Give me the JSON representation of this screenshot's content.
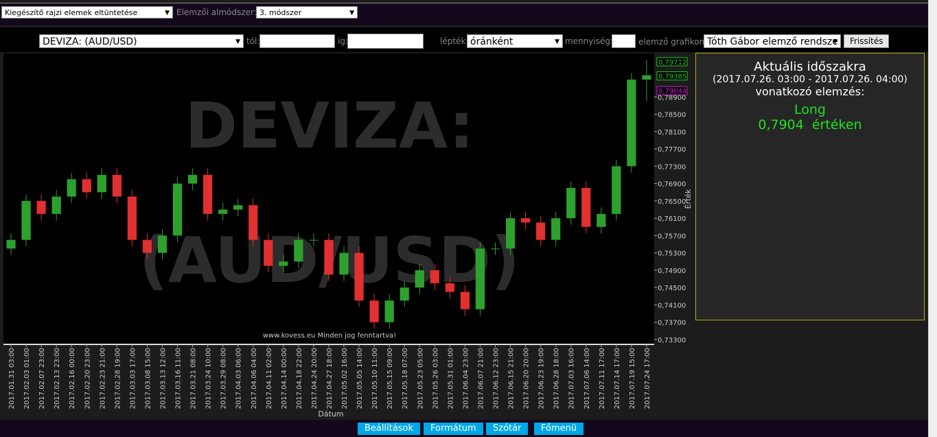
{
  "toolbar": {
    "hide_select": "Kiegészítő rajzi elemek eltüntetése",
    "submethod_label": "Elemzői almódszer:",
    "submethod_select": "3. módszer"
  },
  "controls": {
    "currency_select": "DEVIZA: (AUD/USD)",
    "from_label": "tól:",
    "to_label": "ig:",
    "scale_label": "lépték:",
    "scale_select": "óránként",
    "quantity_label": "mennyiség:",
    "analyst_label": "elemző grafikon:",
    "analyst_select": "Tóth Gábor elemző rendsze",
    "refresh": "Frissítés"
  },
  "chart_data": {
    "type": "candlestick",
    "title": "DEVIZA: (AUD/USD)",
    "copyright": "www.kovess.eu Minden jog fenntartva!",
    "x_label": "Dátum",
    "y_label": "Érték",
    "up_color": "#2ea02e",
    "down_color": "#e03030",
    "categories": [
      "2017.01.31 03:00",
      "2017.02.03 01:00",
      "2017.02.07 23:00",
      "2017.02.13 23:00",
      "2017.02.16 00:00",
      "2017.02.20 23:00",
      "2017.02.23 21:00",
      "2017.02.28 19:00",
      "2017.03.03 17:00",
      "2017.03.08 15:00",
      "2017.03.13 12:00",
      "2017.03.16 11:00",
      "2017.03.21 08:00",
      "2017.03.24 10:00",
      "2017.03.29 08:00",
      "2017.04.03 06:00",
      "2017.04.06 04:00",
      "2017.04.11 02:00",
      "2017.04.14 00:00",
      "2017.04.18 22:00",
      "2017.04.24 20:00",
      "2017.04.27 18:00",
      "2017.05.02 16:00",
      "2017.05.05 14:00",
      "2017.05.10 11:00",
      "2017.05.15 09:00",
      "2017.05.18 07:00",
      "2017.05.23 05:00",
      "2017.05.26 03:00",
      "2017.05.31 01:00",
      "2017.06.04 23:00",
      "2017.06.07 21:00",
      "2017.06.12 23:00",
      "2017.06.15 21:00",
      "2017.06.20 20:00",
      "2017.06.23 19:00",
      "2017.06.28 18:00",
      "2017.07.03 16:00",
      "2017.07.06 14:00",
      "2017.07.11 17:00",
      "2017.07.14 17:00",
      "2017.07.19 15:00",
      "2017.07.24 17:00"
    ],
    "open": [
      0.754,
      0.756,
      0.765,
      0.762,
      0.766,
      0.77,
      0.767,
      0.771,
      0.766,
      0.756,
      0.753,
      0.757,
      0.769,
      0.771,
      0.762,
      0.763,
      0.764,
      0.756,
      0.75,
      0.751,
      0.756,
      0.756,
      0.748,
      0.753,
      0.742,
      0.737,
      0.742,
      0.745,
      0.749,
      0.746,
      0.744,
      0.74,
      0.754,
      0.754,
      0.761,
      0.76,
      0.756,
      0.761,
      0.768,
      0.759,
      0.762,
      0.773,
      0.793
    ],
    "high": [
      0.7575,
      0.7665,
      0.7665,
      0.7675,
      0.7715,
      0.7715,
      0.7725,
      0.7725,
      0.7675,
      0.7575,
      0.7585,
      0.7705,
      0.7725,
      0.7725,
      0.7645,
      0.7655,
      0.7655,
      0.7575,
      0.7525,
      0.7575,
      0.7575,
      0.7575,
      0.7545,
      0.7545,
      0.7435,
      0.7435,
      0.7465,
      0.7505,
      0.7505,
      0.7475,
      0.7455,
      0.7555,
      0.7555,
      0.7625,
      0.7625,
      0.7615,
      0.7625,
      0.7695,
      0.7695,
      0.7635,
      0.7745,
      0.7945,
      0.7975
    ],
    "low": [
      0.7525,
      0.7545,
      0.7605,
      0.7605,
      0.7645,
      0.7655,
      0.7655,
      0.7645,
      0.7545,
      0.7515,
      0.7515,
      0.7555,
      0.7675,
      0.7605,
      0.7605,
      0.7615,
      0.7545,
      0.7485,
      0.7485,
      0.7495,
      0.7545,
      0.7465,
      0.7465,
      0.7405,
      0.7355,
      0.7355,
      0.7405,
      0.7435,
      0.7445,
      0.7425,
      0.7385,
      0.7385,
      0.7525,
      0.7525,
      0.7585,
      0.7545,
      0.7545,
      0.7595,
      0.7575,
      0.7575,
      0.7605,
      0.7715,
      0.788
    ],
    "close": [
      0.756,
      0.765,
      0.762,
      0.766,
      0.77,
      0.767,
      0.771,
      0.766,
      0.756,
      0.753,
      0.757,
      0.769,
      0.771,
      0.762,
      0.763,
      0.764,
      0.756,
      0.75,
      0.751,
      0.756,
      0.756,
      0.748,
      0.753,
      0.742,
      0.737,
      0.742,
      0.745,
      0.749,
      0.746,
      0.744,
      0.74,
      0.754,
      0.754,
      0.761,
      0.76,
      0.756,
      0.761,
      0.768,
      0.759,
      0.762,
      0.773,
      0.793,
      0.794
    ],
    "ylim": [
      0.7322,
      0.7987
    ],
    "yticks": [
      {
        "value": 0.733,
        "label": "0,73300"
      },
      {
        "value": 0.737,
        "label": "0,73700"
      },
      {
        "value": 0.741,
        "label": "0,74100"
      },
      {
        "value": 0.745,
        "label": "0,74500"
      },
      {
        "value": 0.749,
        "label": "0,74900"
      },
      {
        "value": 0.753,
        "label": "0,75300"
      },
      {
        "value": 0.757,
        "label": "0,75700"
      },
      {
        "value": 0.761,
        "label": "0,76100"
      },
      {
        "value": 0.765,
        "label": "0,76500"
      },
      {
        "value": 0.769,
        "label": "0,76900"
      },
      {
        "value": 0.773,
        "label": "0,77300"
      },
      {
        "value": 0.777,
        "label": "0,77700"
      },
      {
        "value": 0.781,
        "label": "0,78100"
      },
      {
        "value": 0.785,
        "label": "0,78500"
      },
      {
        "value": 0.789,
        "label": "0,78900"
      }
    ],
    "price_markers": [
      {
        "value": 0.79712,
        "label": "0,79712",
        "color": "#22cc22"
      },
      {
        "value": 0.79385,
        "label": "0,79385",
        "color": "#22cc22"
      },
      {
        "value": 0.79044,
        "label": "0,79044",
        "color": "#cc22cc"
      }
    ]
  },
  "panel": {
    "heading": "Aktuális időszakra",
    "period": "(2017.07.26. 03:00 - 2017.07.26. 04:00)",
    "subheading": "vonatkozó elemzés:",
    "signal": "Long",
    "value_text": "0,7904  értéken"
  },
  "footer": {
    "buttons": [
      "Beállítások",
      "Formátum",
      "Szótár",
      "Főmenü"
    ]
  }
}
